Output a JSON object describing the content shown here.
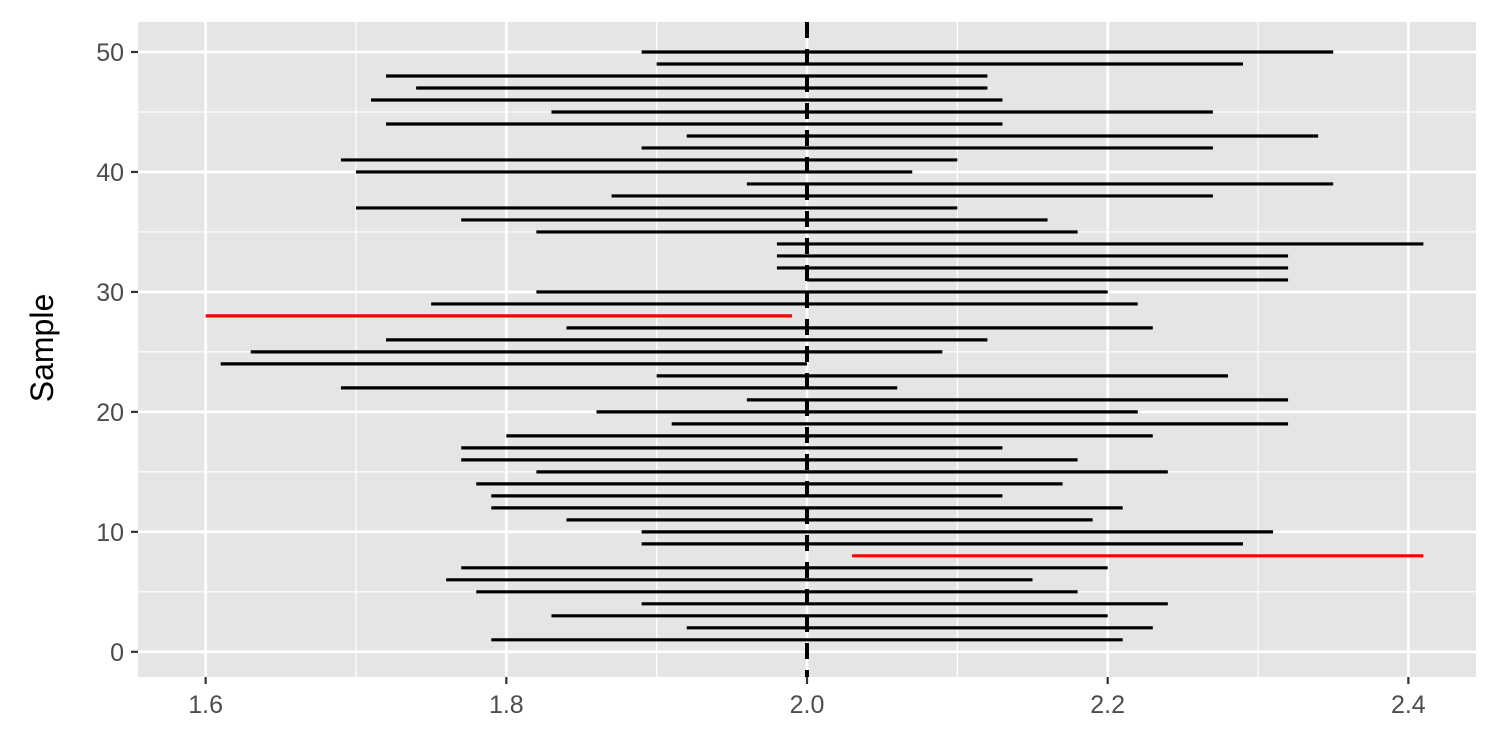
{
  "chart_data": {
    "type": "interval",
    "title": "",
    "xlabel": "",
    "ylabel": "Sample",
    "xlim": [
      1.555,
      2.445
    ],
    "ylim": [
      -2.1,
      52.5
    ],
    "x_ticks": [
      1.6,
      1.8,
      2.0,
      2.2,
      2.4
    ],
    "x_tick_labels": [
      "1.6",
      "1.8",
      "2.0",
      "2.2",
      "2.4"
    ],
    "y_ticks": [
      0,
      10,
      20,
      30,
      40,
      50
    ],
    "y_tick_labels": [
      "0",
      "10",
      "20",
      "30",
      "40",
      "50"
    ],
    "reference_line": {
      "x": 2.0,
      "style": "dashed",
      "color": "#000000"
    },
    "grid": true,
    "colors": {
      "panel": "#e5e5e5",
      "grid": "#ffffff",
      "covers": "#000000",
      "misses": "#ff0000"
    },
    "intervals": [
      {
        "sample": 1,
        "lower": 1.79,
        "upper": 2.21,
        "covers": true
      },
      {
        "sample": 2,
        "lower": 1.92,
        "upper": 2.23,
        "covers": true
      },
      {
        "sample": 3,
        "lower": 1.83,
        "upper": 2.2,
        "covers": true
      },
      {
        "sample": 4,
        "lower": 1.89,
        "upper": 2.24,
        "covers": true
      },
      {
        "sample": 5,
        "lower": 1.78,
        "upper": 2.18,
        "covers": true
      },
      {
        "sample": 6,
        "lower": 1.76,
        "upper": 2.15,
        "covers": true
      },
      {
        "sample": 7,
        "lower": 1.77,
        "upper": 2.2,
        "covers": true
      },
      {
        "sample": 8,
        "lower": 2.03,
        "upper": 2.41,
        "covers": false
      },
      {
        "sample": 9,
        "lower": 1.89,
        "upper": 2.29,
        "covers": true
      },
      {
        "sample": 10,
        "lower": 1.89,
        "upper": 2.31,
        "covers": true
      },
      {
        "sample": 11,
        "lower": 1.84,
        "upper": 2.19,
        "covers": true
      },
      {
        "sample": 12,
        "lower": 1.79,
        "upper": 2.21,
        "covers": true
      },
      {
        "sample": 13,
        "lower": 1.79,
        "upper": 2.13,
        "covers": true
      },
      {
        "sample": 14,
        "lower": 1.78,
        "upper": 2.17,
        "covers": true
      },
      {
        "sample": 15,
        "lower": 1.82,
        "upper": 2.24,
        "covers": true
      },
      {
        "sample": 16,
        "lower": 1.77,
        "upper": 2.18,
        "covers": true
      },
      {
        "sample": 17,
        "lower": 1.77,
        "upper": 2.13,
        "covers": true
      },
      {
        "sample": 18,
        "lower": 1.8,
        "upper": 2.23,
        "covers": true
      },
      {
        "sample": 19,
        "lower": 1.91,
        "upper": 2.32,
        "covers": true
      },
      {
        "sample": 20,
        "lower": 1.86,
        "upper": 2.22,
        "covers": true
      },
      {
        "sample": 21,
        "lower": 1.96,
        "upper": 2.32,
        "covers": true
      },
      {
        "sample": 22,
        "lower": 1.69,
        "upper": 2.06,
        "covers": true
      },
      {
        "sample": 23,
        "lower": 1.9,
        "upper": 2.28,
        "covers": true
      },
      {
        "sample": 24,
        "lower": 1.61,
        "upper": 2.0,
        "covers": true
      },
      {
        "sample": 25,
        "lower": 1.63,
        "upper": 2.09,
        "covers": true
      },
      {
        "sample": 26,
        "lower": 1.72,
        "upper": 2.12,
        "covers": true
      },
      {
        "sample": 27,
        "lower": 1.84,
        "upper": 2.23,
        "covers": true
      },
      {
        "sample": 28,
        "lower": 1.6,
        "upper": 1.99,
        "covers": false
      },
      {
        "sample": 29,
        "lower": 1.75,
        "upper": 2.22,
        "covers": true
      },
      {
        "sample": 30,
        "lower": 1.82,
        "upper": 2.2,
        "covers": true
      },
      {
        "sample": 31,
        "lower": 2.0,
        "upper": 2.32,
        "covers": true
      },
      {
        "sample": 32,
        "lower": 1.98,
        "upper": 2.32,
        "covers": true
      },
      {
        "sample": 33,
        "lower": 1.98,
        "upper": 2.32,
        "covers": true
      },
      {
        "sample": 34,
        "lower": 1.98,
        "upper": 2.41,
        "covers": true
      },
      {
        "sample": 35,
        "lower": 1.82,
        "upper": 2.18,
        "covers": true
      },
      {
        "sample": 36,
        "lower": 1.77,
        "upper": 2.16,
        "covers": true
      },
      {
        "sample": 37,
        "lower": 1.7,
        "upper": 2.1,
        "covers": true
      },
      {
        "sample": 38,
        "lower": 1.87,
        "upper": 2.27,
        "covers": true
      },
      {
        "sample": 39,
        "lower": 1.96,
        "upper": 2.35,
        "covers": true
      },
      {
        "sample": 40,
        "lower": 1.7,
        "upper": 2.07,
        "covers": true
      },
      {
        "sample": 41,
        "lower": 1.69,
        "upper": 2.1,
        "covers": true
      },
      {
        "sample": 42,
        "lower": 1.89,
        "upper": 2.27,
        "covers": true
      },
      {
        "sample": 43,
        "lower": 1.92,
        "upper": 2.34,
        "covers": true
      },
      {
        "sample": 44,
        "lower": 1.72,
        "upper": 2.13,
        "covers": true
      },
      {
        "sample": 45,
        "lower": 1.83,
        "upper": 2.27,
        "covers": true
      },
      {
        "sample": 46,
        "lower": 1.71,
        "upper": 2.13,
        "covers": true
      },
      {
        "sample": 47,
        "lower": 1.74,
        "upper": 2.12,
        "covers": true
      },
      {
        "sample": 48,
        "lower": 1.72,
        "upper": 2.12,
        "covers": true
      },
      {
        "sample": 49,
        "lower": 1.9,
        "upper": 2.29,
        "covers": true
      },
      {
        "sample": 50,
        "lower": 1.89,
        "upper": 2.35,
        "covers": true
      }
    ]
  }
}
